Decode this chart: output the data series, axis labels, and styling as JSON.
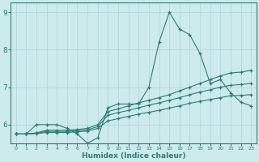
{
  "xlabel": "Humidex (Indice chaleur)",
  "bg_color": "#cdeaed",
  "grid_color": "#aed4d8",
  "line_color": "#2e7d72",
  "xlim": [
    -0.5,
    23.5
  ],
  "ylim": [
    5.5,
    9.25
  ],
  "yticks": [
    6,
    7,
    8,
    9
  ],
  "xticks": [
    0,
    1,
    2,
    3,
    4,
    5,
    6,
    7,
    8,
    9,
    10,
    11,
    12,
    13,
    14,
    15,
    16,
    17,
    18,
    19,
    20,
    21,
    22,
    23
  ],
  "lines": [
    {
      "x": [
        0,
        1,
        2,
        3,
        4,
        5,
        6,
        7,
        8,
        9,
        10,
        11,
        12,
        13,
        14,
        15,
        16,
        17,
        18,
        19,
        20,
        21,
        22,
        23
      ],
      "y": [
        5.75,
        5.75,
        6.0,
        6.0,
        6.0,
        5.9,
        5.75,
        5.5,
        5.65,
        6.45,
        6.55,
        6.55,
        6.55,
        7.0,
        8.2,
        9.0,
        8.55,
        8.4,
        7.9,
        7.1,
        7.2,
        6.85,
        6.6,
        6.5
      ]
    },
    {
      "x": [
        0,
        1,
        2,
        3,
        4,
        5,
        6,
        7,
        8,
        9,
        10,
        11,
        12,
        13,
        14,
        15,
        16,
        17,
        18,
        19,
        20,
        21,
        22,
        23
      ],
      "y": [
        5.75,
        5.75,
        5.78,
        5.85,
        5.85,
        5.85,
        5.87,
        5.9,
        6.0,
        6.35,
        6.42,
        6.5,
        6.58,
        6.65,
        6.72,
        6.8,
        6.9,
        7.0,
        7.1,
        7.2,
        7.3,
        7.38,
        7.4,
        7.45
      ]
    },
    {
      "x": [
        0,
        1,
        2,
        3,
        4,
        5,
        6,
        7,
        8,
        9,
        10,
        11,
        12,
        13,
        14,
        15,
        16,
        17,
        18,
        19,
        20,
        21,
        22,
        23
      ],
      "y": [
        5.75,
        5.75,
        5.77,
        5.82,
        5.82,
        5.82,
        5.84,
        5.86,
        5.95,
        6.25,
        6.32,
        6.38,
        6.45,
        6.52,
        6.58,
        6.65,
        6.72,
        6.8,
        6.87,
        6.93,
        7.0,
        7.05,
        7.07,
        7.1
      ]
    },
    {
      "x": [
        0,
        1,
        2,
        3,
        4,
        5,
        6,
        7,
        8,
        9,
        10,
        11,
        12,
        13,
        14,
        15,
        16,
        17,
        18,
        19,
        20,
        21,
        22,
        23
      ],
      "y": [
        5.75,
        5.75,
        5.76,
        5.79,
        5.79,
        5.79,
        5.81,
        5.83,
        5.9,
        6.1,
        6.16,
        6.22,
        6.28,
        6.33,
        6.38,
        6.44,
        6.5,
        6.57,
        6.62,
        6.67,
        6.72,
        6.77,
        6.78,
        6.8
      ]
    }
  ]
}
